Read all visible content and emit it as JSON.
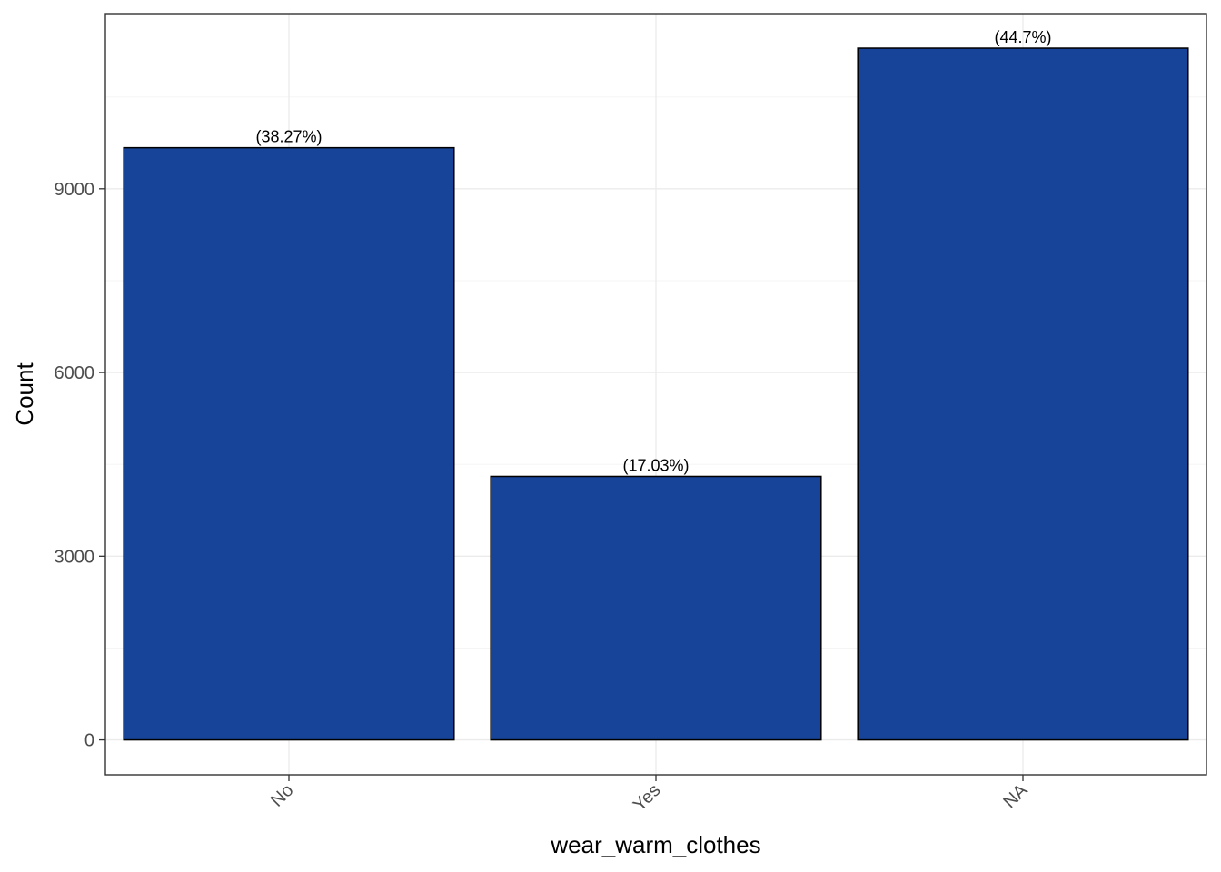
{
  "chart_data": {
    "type": "bar",
    "categories": [
      "No",
      "Yes",
      "NA"
    ],
    "values": [
      9670,
      4303,
      11296
    ],
    "data_labels": [
      "(38.27%)",
      "(17.03%)",
      "(44.7%)"
    ],
    "title": "",
    "xlabel": "wear_warm_clothes",
    "ylabel": "Count",
    "ylim": [
      -570,
      11860
    ],
    "yticks": [
      0,
      3000,
      6000,
      9000
    ],
    "grid": true,
    "legend": "none",
    "colors": {
      "bar_fill": "#174499",
      "bar_stroke": "#000000",
      "grid_major": "#ebebeb",
      "grid_minor": "#f5f5f5",
      "panel_border": "#333333",
      "tick_text": "#4d4d4d"
    }
  }
}
